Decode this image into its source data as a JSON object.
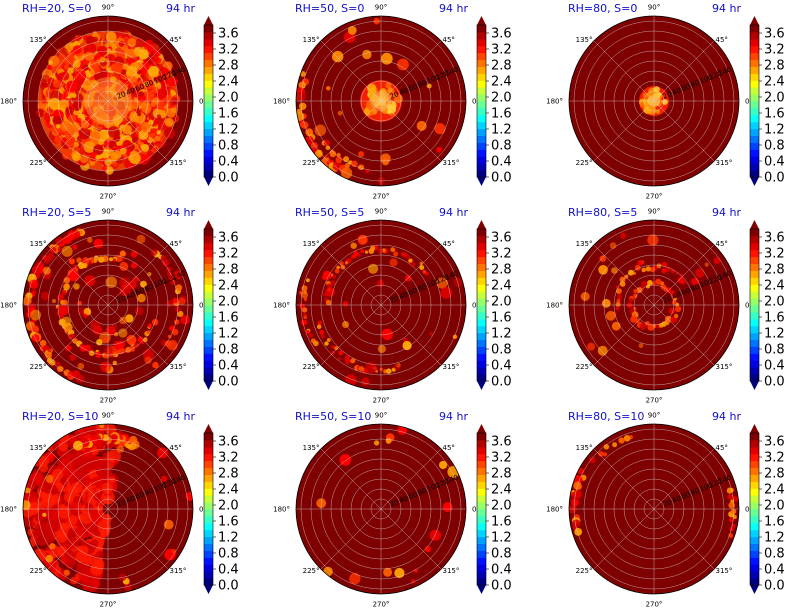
{
  "chart_data": [
    {
      "type": "heatmap",
      "projection": "polar",
      "title": "RH=20, S=0",
      "time_label": "94 hr",
      "radial_ticks": [
        "20",
        "40",
        "60",
        "80",
        "100",
        "120",
        "140"
      ],
      "angle_ticks": [
        "0°",
        "45°",
        "90°",
        "135°",
        "180°",
        "225°",
        "270°",
        "315°"
      ],
      "colorbar": {
        "ticks": [
          "0.0",
          "0.4",
          "0.8",
          "1.2",
          "1.6",
          "2.0",
          "2.4",
          "2.8",
          "3.2",
          "3.6"
        ],
        "extend": "both",
        "colormap": "jet"
      },
      "field": "broad orange/red ring covering most of the disk, saturated hot core, dark-red outer rim"
    },
    {
      "type": "heatmap",
      "projection": "polar",
      "title": "RH=50, S=0",
      "time_label": "94 hr",
      "radial_ticks": [
        "20",
        "40",
        "60",
        "80",
        "100",
        "120",
        "140"
      ],
      "angle_ticks": [
        "0°",
        "45°",
        "90°",
        "135°",
        "180°",
        "225°",
        "270°",
        "315°"
      ],
      "colorbar": {
        "ticks": [
          "0.0",
          "0.4",
          "0.8",
          "1.2",
          "1.6",
          "2.0",
          "2.4",
          "2.8",
          "3.2",
          "3.6"
        ],
        "extend": "both",
        "colormap": "jet"
      },
      "field": "compact bright core near center, scattered patches on left/lower edge"
    },
    {
      "type": "heatmap",
      "projection": "polar",
      "title": "RH=80, S=0",
      "time_label": "94 hr",
      "radial_ticks": [
        "20",
        "40",
        "60",
        "80",
        "100",
        "120",
        "140"
      ],
      "angle_ticks": [
        "0°",
        "45°",
        "90°",
        "135°",
        "180°",
        "225°",
        "270°",
        "315°"
      ],
      "colorbar": {
        "ticks": [
          "0.0",
          "0.4",
          "0.8",
          "1.2",
          "1.6",
          "2.0",
          "2.4",
          "2.8",
          "3.2",
          "3.6"
        ],
        "extend": "both",
        "colormap": "jet"
      },
      "field": "small bright core at center, rest dark red"
    },
    {
      "type": "heatmap",
      "projection": "polar",
      "title": "RH=20, S=5",
      "time_label": "94 hr",
      "radial_ticks": [
        "20",
        "40",
        "60",
        "80",
        "100",
        "120",
        "140"
      ],
      "angle_ticks": [
        "0°",
        "45°",
        "90°",
        "135°",
        "180°",
        "225°",
        "270°",
        "315°"
      ],
      "colorbar": {
        "ticks": [
          "0.0",
          "0.4",
          "0.8",
          "1.2",
          "1.6",
          "2.0",
          "2.4",
          "2.8",
          "3.2",
          "3.6"
        ],
        "extend": "both",
        "colormap": "jet"
      },
      "field": "spiral bands and outer rim patches"
    },
    {
      "type": "heatmap",
      "projection": "polar",
      "title": "RH=50, S=5",
      "time_label": "94 hr",
      "radial_ticks": [
        "20",
        "40",
        "60",
        "80",
        "100",
        "120",
        "140"
      ],
      "angle_ticks": [
        "0°",
        "45°",
        "90°",
        "135°",
        "180°",
        "225°",
        "270°",
        "315°"
      ],
      "colorbar": {
        "ticks": [
          "0.0",
          "0.4",
          "0.8",
          "1.2",
          "1.6",
          "2.0",
          "2.4",
          "2.8",
          "3.2",
          "3.6"
        ],
        "extend": "both",
        "colormap": "jet"
      },
      "field": "thin arcs and scattered speckles"
    },
    {
      "type": "heatmap",
      "projection": "polar",
      "title": "RH=80, S=5",
      "time_label": "94 hr",
      "radial_ticks": [
        "20",
        "40",
        "60",
        "80",
        "100",
        "120",
        "140"
      ],
      "angle_ticks": [
        "0°",
        "45°",
        "90°",
        "135°",
        "180°",
        "225°",
        "270°",
        "315°"
      ],
      "colorbar": {
        "ticks": [
          "0.0",
          "0.4",
          "0.8",
          "1.2",
          "1.6",
          "2.0",
          "2.4",
          "2.8",
          "3.2",
          "3.6"
        ],
        "extend": "both",
        "colormap": "jet"
      },
      "field": "bright ring around center with scattered outer dots"
    },
    {
      "type": "heatmap",
      "projection": "polar",
      "title": "RH=20, S=10",
      "time_label": "94 hr",
      "radial_ticks": [
        "20",
        "40",
        "60",
        "80",
        "100",
        "120",
        "140"
      ],
      "angle_ticks": [
        "0°",
        "45°",
        "90°",
        "135°",
        "180°",
        "225°",
        "270°",
        "315°"
      ],
      "colorbar": {
        "ticks": [
          "0.0",
          "0.4",
          "0.8",
          "1.2",
          "1.6",
          "2.0",
          "2.4",
          "2.8",
          "3.2",
          "3.6"
        ],
        "extend": "both",
        "colormap": "jet"
      },
      "field": "large red region on left half, hot patch at top"
    },
    {
      "type": "heatmap",
      "projection": "polar",
      "title": "RH=50, S=10",
      "time_label": "94 hr",
      "radial_ticks": [
        "20",
        "40",
        "60",
        "80",
        "100",
        "120",
        "140"
      ],
      "angle_ticks": [
        "0°",
        "45°",
        "90°",
        "135°",
        "180°",
        "225°",
        "270°",
        "315°"
      ],
      "colorbar": {
        "ticks": [
          "0.0",
          "0.4",
          "0.8",
          "1.2",
          "1.6",
          "2.0",
          "2.4",
          "2.8",
          "3.2",
          "3.6"
        ],
        "extend": "both",
        "colormap": "jet"
      },
      "field": "mostly dark red with few small speckles"
    },
    {
      "type": "heatmap",
      "projection": "polar",
      "title": "RH=80, S=10",
      "time_label": "94 hr",
      "radial_ticks": [
        "20",
        "40",
        "60",
        "80",
        "100",
        "120",
        "140"
      ],
      "angle_ticks": [
        "0°",
        "45°",
        "90°",
        "135°",
        "180°",
        "225°",
        "270°",
        "315°"
      ],
      "colorbar": {
        "ticks": [
          "0.0",
          "0.4",
          "0.8",
          "1.2",
          "1.6",
          "2.0",
          "2.4",
          "2.8",
          "3.2",
          "3.6"
        ],
        "extend": "both",
        "colormap": "jet"
      },
      "field": "dark red with hot patches on left and right edges"
    }
  ],
  "colors": {
    "background_field": "#7f0000",
    "title_color": "#1010cc",
    "jet": [
      "#00007f",
      "#0000ff",
      "#007fff",
      "#00ffff",
      "#7fff7f",
      "#ffff00",
      "#ff7f00",
      "#ff0000",
      "#7f0000"
    ]
  }
}
